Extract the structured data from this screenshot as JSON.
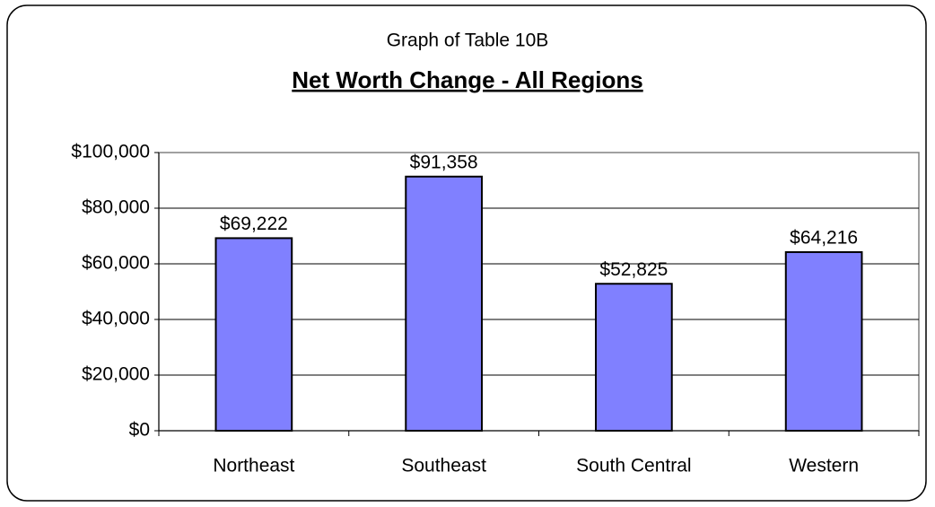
{
  "chart_data": {
    "type": "bar",
    "title": "Graph of Table 10B",
    "subtitle": "Net Worth Change - All Regions",
    "categories": [
      "Northeast",
      "Southeast",
      "South Central",
      "Western"
    ],
    "values": [
      69222,
      91358,
      52825,
      64216
    ],
    "value_labels": [
      "$69,222",
      "$91,358",
      "$52,825",
      "$64,216"
    ],
    "color": "#8080ff",
    "ylim": [
      0,
      100000
    ],
    "yticks": [
      {
        "value": 0,
        "label": "$0"
      },
      {
        "value": 20000,
        "label": "$20,000"
      },
      {
        "value": 40000,
        "label": "$40,000"
      },
      {
        "value": 60000,
        "label": "$60,000"
      },
      {
        "value": 80000,
        "label": "$80,000"
      },
      {
        "value": 100000,
        "label": "$100,000"
      }
    ],
    "grid": true
  }
}
